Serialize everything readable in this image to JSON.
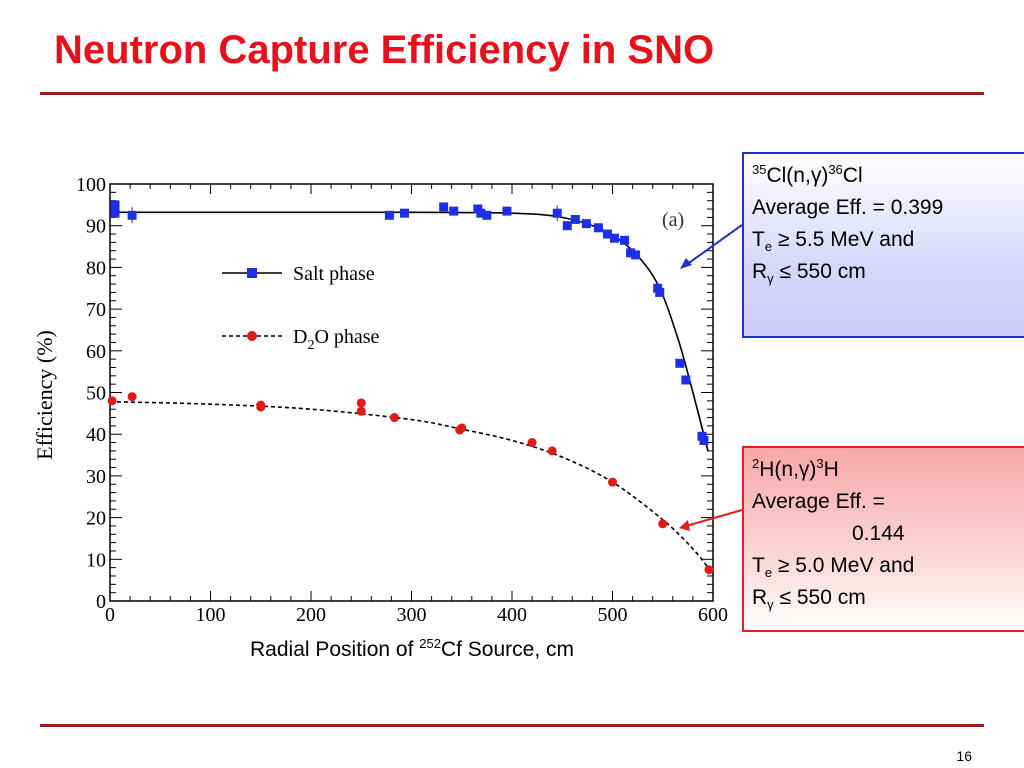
{
  "slide": {
    "title": "Neutron Capture Efficiency in SNO",
    "page_number": "16"
  },
  "chart_data": {
    "type": "scatter",
    "panel_label": "(a)",
    "ylabel": "Efficiency (%)",
    "xlabel_parts": {
      "prefix": "Radial Position of ",
      "sup": "252",
      "suffix": "Cf Source, cm"
    },
    "xlim": [
      0,
      600
    ],
    "ylim": [
      0,
      100
    ],
    "x_ticks": [
      0,
      100,
      200,
      300,
      400,
      500,
      600
    ],
    "y_ticks": [
      0,
      10,
      20,
      30,
      40,
      50,
      60,
      70,
      80,
      90,
      100
    ],
    "legend_placement": "center-left",
    "series": [
      {
        "name": "Salt phase",
        "legend_label_parts": [
          "Salt phase"
        ],
        "color": "#1f2fe6",
        "marker": "square",
        "line": "solid",
        "points": [
          {
            "x": 5,
            "y": 95.0
          },
          {
            "x": 5,
            "y": 93.0
          },
          {
            "x": 22,
            "y": 92.5
          },
          {
            "x": 278,
            "y": 92.5
          },
          {
            "x": 293,
            "y": 93.0
          },
          {
            "x": 332,
            "y": 94.5
          },
          {
            "x": 342,
            "y": 93.5
          },
          {
            "x": 366,
            "y": 94.0
          },
          {
            "x": 369,
            "y": 93.0
          },
          {
            "x": 375,
            "y": 92.5
          },
          {
            "x": 395,
            "y": 93.5
          },
          {
            "x": 445,
            "y": 93.0
          },
          {
            "x": 455,
            "y": 90.0
          },
          {
            "x": 463,
            "y": 91.5
          },
          {
            "x": 474,
            "y": 90.5
          },
          {
            "x": 486,
            "y": 89.5
          },
          {
            "x": 495,
            "y": 88.0
          },
          {
            "x": 502,
            "y": 87.0
          },
          {
            "x": 512,
            "y": 86.5
          },
          {
            "x": 518,
            "y": 83.5
          },
          {
            "x": 523,
            "y": 83.0
          },
          {
            "x": 545,
            "y": 75.0
          },
          {
            "x": 547,
            "y": 74.0
          },
          {
            "x": 567,
            "y": 57.0
          },
          {
            "x": 573,
            "y": 53.0
          },
          {
            "x": 589,
            "y": 39.5
          },
          {
            "x": 591,
            "y": 38.5
          }
        ],
        "fit_curve": [
          {
            "x": 0,
            "y": 93.2
          },
          {
            "x": 300,
            "y": 93.2
          },
          {
            "x": 400,
            "y": 93.0
          },
          {
            "x": 450,
            "y": 92.0
          },
          {
            "x": 490,
            "y": 89.0
          },
          {
            "x": 520,
            "y": 84.0
          },
          {
            "x": 545,
            "y": 76.0
          },
          {
            "x": 565,
            "y": 63.0
          },
          {
            "x": 580,
            "y": 50.0
          },
          {
            "x": 595,
            "y": 36.0
          }
        ]
      },
      {
        "name": "D2O phase",
        "legend_label_parts": [
          "D",
          "2",
          "O phase"
        ],
        "color": "#e01919",
        "marker": "circle",
        "line": "dashed",
        "points": [
          {
            "x": 2,
            "y": 48.0
          },
          {
            "x": 22,
            "y": 49.0
          },
          {
            "x": 150,
            "y": 46.5
          },
          {
            "x": 150,
            "y": 47.0
          },
          {
            "x": 250,
            "y": 47.5
          },
          {
            "x": 250,
            "y": 45.5
          },
          {
            "x": 283,
            "y": 44.0
          },
          {
            "x": 348,
            "y": 41.0
          },
          {
            "x": 350,
            "y": 41.5
          },
          {
            "x": 420,
            "y": 38.0
          },
          {
            "x": 440,
            "y": 36.0
          },
          {
            "x": 500,
            "y": 28.5
          },
          {
            "x": 550,
            "y": 18.5
          },
          {
            "x": 596,
            "y": 7.5
          }
        ],
        "fit_curve": [
          {
            "x": 0,
            "y": 47.8
          },
          {
            "x": 100,
            "y": 47.2
          },
          {
            "x": 200,
            "y": 46.0
          },
          {
            "x": 300,
            "y": 43.5
          },
          {
            "x": 350,
            "y": 41.2
          },
          {
            "x": 400,
            "y": 38.5
          },
          {
            "x": 450,
            "y": 34.5
          },
          {
            "x": 500,
            "y": 28.5
          },
          {
            "x": 550,
            "y": 19.5
          },
          {
            "x": 580,
            "y": 12.5
          },
          {
            "x": 600,
            "y": 6.5
          }
        ]
      }
    ]
  },
  "annotations": {
    "salt_box": {
      "reaction": {
        "pre_sup": "35",
        "main": "Cl(n,",
        "gamma": "γ",
        "close": ")",
        "post_sup": "36",
        "end": "Cl"
      },
      "line2": "Average Eff. = 0.399",
      "line3": {
        "pre": "T",
        "sub": "e",
        "post": " ≥ 5.5 MeV and"
      },
      "line4": {
        "pre": "R",
        "sub": "γ",
        "post": " ≤ 550 cm"
      }
    },
    "d2o_box": {
      "reaction": {
        "pre_sup": "2",
        "main": "H(n,",
        "gamma": "γ",
        "close": ")",
        "post_sup": "3",
        "end": "H"
      },
      "line2": "Average Eff. =",
      "line2b": "0.144",
      "line3": {
        "pre": "T",
        "sub": "e",
        "post": " ≥ 5.0 MeV and"
      },
      "line4": {
        "pre": "R",
        "sub": "γ",
        "post": " ≤ 550 cm"
      }
    }
  }
}
